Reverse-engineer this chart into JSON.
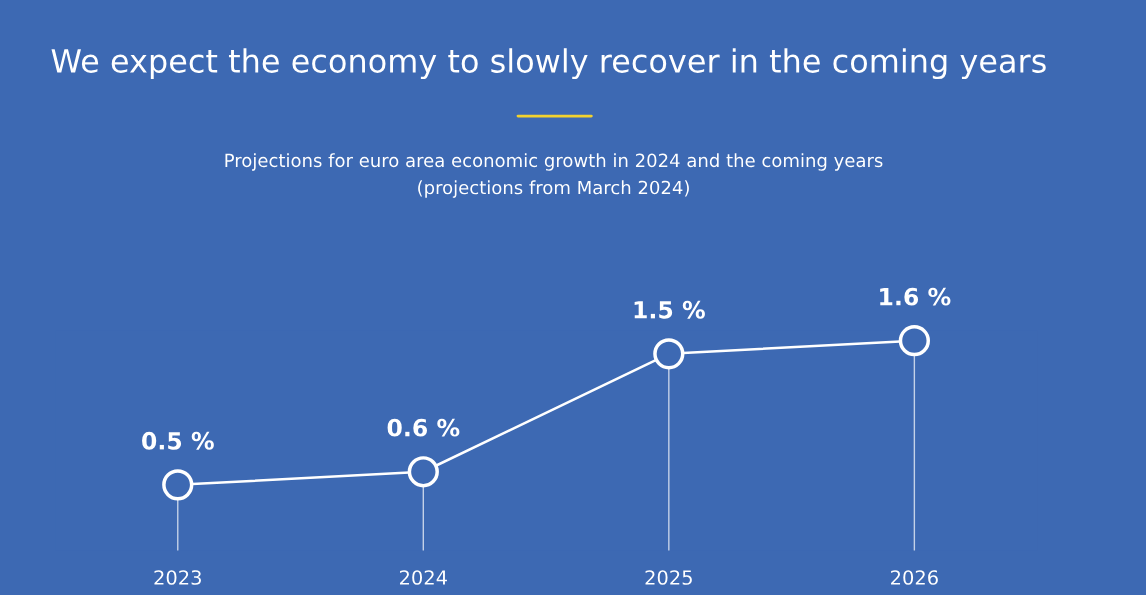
{
  "chart_data": {
    "type": "line",
    "title": "We expect the economy to slowly recover in the coming years",
    "subtitle": "Projections for euro area economic growth in 2024 and the coming years\n(projections from March 2024)",
    "categories": [
      "2023",
      "2024",
      "2025",
      "2026"
    ],
    "series": [
      {
        "color": "#ffffff",
        "values": [
          0.5,
          0.6,
          1.5,
          1.6
        ],
        "value_labels": [
          "0.5 %",
          "0.6 %",
          "1.5 %",
          "1.6 %"
        ]
      }
    ],
    "marker": "circle",
    "line_style": "solid",
    "grid": "x",
    "legend": false,
    "tick_labels": "x"
  }
}
